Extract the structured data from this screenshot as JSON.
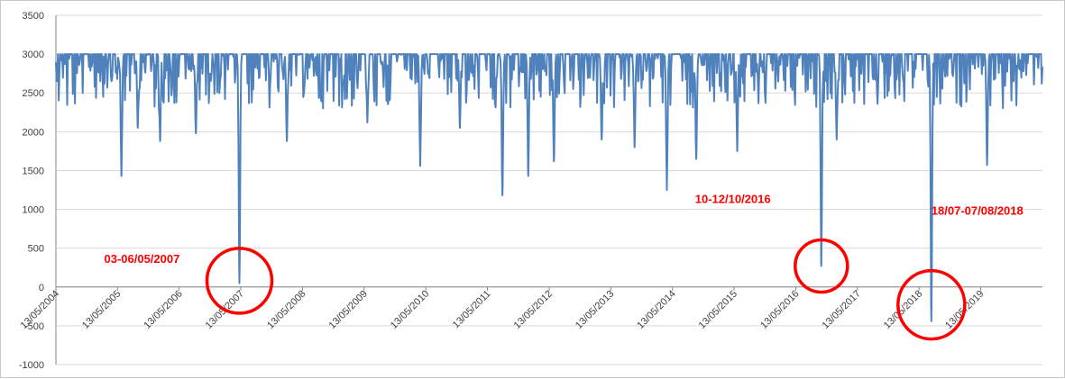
{
  "chart_data": {
    "type": "line",
    "title": "",
    "xlabel": "",
    "ylabel": "",
    "ylim": [
      -1000,
      3500
    ],
    "y_ticks": [
      -1000,
      -500,
      0,
      500,
      1000,
      1500,
      2000,
      2500,
      3000,
      3500
    ],
    "x_range": [
      "2004-05-13",
      "2020-05-13"
    ],
    "x_tick_labels": [
      "13/05/2004",
      "13/05/2005",
      "13/05/2006",
      "13/05/2007",
      "13/05/2008",
      "13/05/2009",
      "13/05/2010",
      "13/05/2011",
      "13/05/2012",
      "13/05/2013",
      "13/05/2014",
      "13/05/2015",
      "13/05/2016",
      "13/05/2017",
      "13/05/2018",
      "13/05/2019"
    ],
    "grid": "horizontal",
    "legend": "none",
    "line_color": "#4f81bd",
    "baseline": 3000,
    "noise_floor": 2300,
    "dips": [
      {
        "x": "2005-06-05",
        "y": 1430
      },
      {
        "x": "2005-09-10",
        "y": 2050
      },
      {
        "x": "2006-01-20",
        "y": 1880
      },
      {
        "x": "2006-08-20",
        "y": 1980
      },
      {
        "x": "2007-05-05",
        "y": 50
      },
      {
        "x": "2008-02-10",
        "y": 1880
      },
      {
        "x": "2009-06-01",
        "y": 2120
      },
      {
        "x": "2010-04-10",
        "y": 1560
      },
      {
        "x": "2010-12-01",
        "y": 2050
      },
      {
        "x": "2011-08-10",
        "y": 1180
      },
      {
        "x": "2012-01-10",
        "y": 1430
      },
      {
        "x": "2012-06-10",
        "y": 1620
      },
      {
        "x": "2013-03-20",
        "y": 1900
      },
      {
        "x": "2013-10-01",
        "y": 1800
      },
      {
        "x": "2014-04-10",
        "y": 1250
      },
      {
        "x": "2014-10-01",
        "y": 1650
      },
      {
        "x": "2015-06-01",
        "y": 1750
      },
      {
        "x": "2016-10-11",
        "y": 270
      },
      {
        "x": "2017-01-10",
        "y": 1900
      },
      {
        "x": "2018-07-25",
        "y": -440
      },
      {
        "x": "2019-06-20",
        "y": 1570
      }
    ],
    "annotations": [
      {
        "text": "03-06/05/2007",
        "x": "2007-05-05",
        "y": 80
      },
      {
        "text": "10-12/10/2016",
        "x": "2016-10-11",
        "y": 270
      },
      {
        "text": "18/07-07/08/2018",
        "x": "2018-07-25",
        "y": -230
      }
    ]
  }
}
